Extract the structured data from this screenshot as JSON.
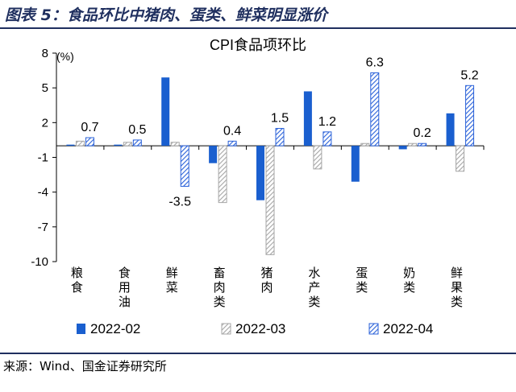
{
  "figure": {
    "title": "图表 5：食品环比中猪肉、蛋类、鲜菜明显涨价",
    "source": "来源：Wind、国金证券研究所"
  },
  "chart_data": {
    "type": "bar",
    "title": "CPI食品项环比",
    "unit_label": "(%)",
    "categories": [
      "粮\n食",
      "食\n用\n油",
      "鲜\n菜",
      "畜\n肉\n类",
      "猪\n肉",
      "水\n产\n类",
      "蛋\n类",
      "奶\n类",
      "鲜\n果\n类"
    ],
    "series": [
      {
        "name": "2022-02",
        "pattern": "solid",
        "color": "#1a5fcf",
        "values": [
          0.1,
          0.1,
          5.9,
          -1.5,
          -4.7,
          4.7,
          -3.1,
          -0.3,
          2.8
        ]
      },
      {
        "name": "2022-03",
        "pattern": "hatch",
        "color": "#a6a6a6",
        "values": [
          0.4,
          0.3,
          0.3,
          -4.9,
          -9.4,
          -2.0,
          0.2,
          0.2,
          -2.2
        ]
      },
      {
        "name": "2022-04",
        "pattern": "hatch",
        "color": "#2b62d9",
        "values": [
          0.7,
          0.5,
          -3.5,
          0.4,
          1.5,
          1.2,
          6.3,
          0.2,
          5.2
        ]
      }
    ],
    "data_labels": [
      {
        "category_index": 0,
        "series_index": 2,
        "text": "0.7"
      },
      {
        "category_index": 1,
        "series_index": 2,
        "text": "0.5"
      },
      {
        "category_index": 2,
        "series_index": 2,
        "text": "-3.5"
      },
      {
        "category_index": 3,
        "series_index": 2,
        "text": "0.4"
      },
      {
        "category_index": 4,
        "series_index": 2,
        "text": "1.5"
      },
      {
        "category_index": 5,
        "series_index": 2,
        "text": "1.2"
      },
      {
        "category_index": 6,
        "series_index": 2,
        "text": "6.3"
      },
      {
        "category_index": 7,
        "series_index": 2,
        "text": "0.2"
      },
      {
        "category_index": 8,
        "series_index": 2,
        "text": "5.2"
      }
    ],
    "yticks": [
      8,
      5,
      2,
      -1,
      -4,
      -7,
      -10
    ],
    "ylim": [
      -10,
      8
    ],
    "grid": false,
    "legend_position": "bottom"
  }
}
